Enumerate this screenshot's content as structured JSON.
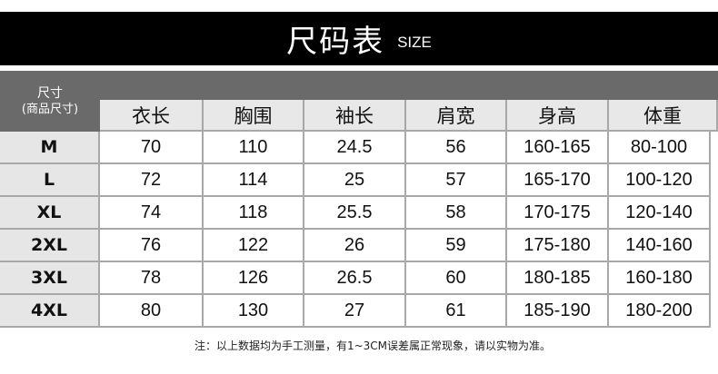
{
  "title": "尺码表",
  "title_en": "SIZE",
  "corner": {
    "line1": "尺寸",
    "line2": "(商品尺寸)"
  },
  "columns": [
    "衣长",
    "胸围",
    "袖长",
    "肩宽",
    "身高",
    "体重"
  ],
  "rows": [
    {
      "size": "M",
      "values": [
        "70",
        "110",
        "24.5",
        "56",
        "160-165",
        "80-100"
      ]
    },
    {
      "size": "L",
      "values": [
        "72",
        "114",
        "25",
        "57",
        "165-170",
        "100-120"
      ]
    },
    {
      "size": "XL",
      "values": [
        "74",
        "118",
        "25.5",
        "58",
        "170-175",
        "120-140"
      ]
    },
    {
      "size": "2XL",
      "values": [
        "76",
        "122",
        "26",
        "59",
        "175-180",
        "140-160"
      ]
    },
    {
      "size": "3XL",
      "values": [
        "78",
        "126",
        "26.5",
        "60",
        "180-185",
        "160-180"
      ]
    },
    {
      "size": "4XL",
      "values": [
        "80",
        "130",
        "27",
        "61",
        "185-190",
        "180-200"
      ]
    }
  ],
  "note": "注：以上数据均为手工测量，有1~3CM误差属正常现象，请以实物为准。"
}
